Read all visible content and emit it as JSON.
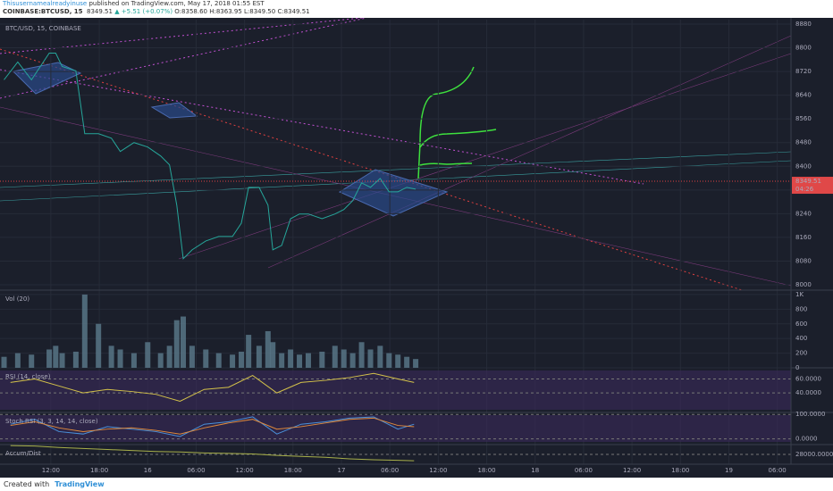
{
  "header": {
    "author": "Thisusernamealreadyinuse",
    "published": "published on TradingView.com, May 17, 2018 01:55 EST",
    "symbol": "COINBASE:BTCUSD, 15",
    "price": "8349.51",
    "change": "▲ +5.51 (+0.07%)",
    "ohlc": "O:8358.60 H:8363.95 L:8349.50 C:8349.51"
  },
  "footer": {
    "created": "Created with",
    "brand": "TradingView"
  },
  "chart_data": [
    {
      "type": "line",
      "title": "BTC/USD, 15, COINBASE",
      "color": "#26a69a",
      "x": [
        -5.8,
        -4.1,
        -2.4,
        -0.2,
        0.6,
        1.4,
        3.1,
        4.2,
        5.9,
        7.5,
        8.6,
        10.3,
        12.0,
        13.6,
        14.7,
        15.6,
        16.4,
        17.5,
        19.2,
        20.8,
        22.5,
        23.6,
        24.5,
        25.8,
        26.9,
        27.5,
        28.6,
        29.7,
        30.8,
        31.9,
        33.6,
        35.2,
        36.3,
        37.4,
        38.5,
        39.6,
        40.8,
        41.9,
        43.0,
        44.1,
        45.2
      ],
      "values": [
        8692,
        8752,
        8692,
        8782,
        8782,
        8737,
        8722,
        8510,
        8510,
        8495,
        8450,
        8480,
        8465,
        8435,
        8405,
        8269,
        8088,
        8118,
        8148,
        8163,
        8163,
        8208,
        8329,
        8329,
        8269,
        8118,
        8133,
        8223,
        8239,
        8239,
        8223,
        8239,
        8254,
        8284,
        8344,
        8329,
        8359,
        8314,
        8314,
        8329,
        8323
      ],
      "last_price": 8349.51,
      "countdown": "04:26",
      "ylim": [
        7982,
        8895
      ],
      "yticks": [
        8000,
        8080,
        8160,
        8240,
        8320,
        8400,
        8480,
        8560,
        8640,
        8720,
        8800,
        8880
      ],
      "xlim": [
        -6.3,
        91.7
      ],
      "xticks": [
        {
          "value": 0,
          "label": "12:00"
        },
        {
          "value": 6,
          "label": "18:00"
        },
        {
          "value": 12,
          "label": "16"
        },
        {
          "value": 18,
          "label": "06:00"
        },
        {
          "value": 24,
          "label": "12:00"
        },
        {
          "value": 30,
          "label": "18:00"
        },
        {
          "value": 36,
          "label": "17"
        },
        {
          "value": 42,
          "label": "06:00"
        },
        {
          "value": 48,
          "label": "12:00"
        },
        {
          "value": 54,
          "label": "18:00"
        },
        {
          "value": 60,
          "label": "18"
        },
        {
          "value": 66,
          "label": "06:00"
        },
        {
          "value": 72,
          "label": "12:00"
        },
        {
          "value": 78,
          "label": "18:00"
        },
        {
          "value": 84,
          "label": "19"
        },
        {
          "value": 90,
          "label": "06:00"
        }
      ],
      "grid": true
    },
    {
      "type": "bar",
      "title": "Vol (20)",
      "color": "#5b7a8c",
      "x": [
        -5.8,
        -4.1,
        -2.4,
        -0.2,
        0.6,
        1.4,
        3.1,
        4.2,
        5.9,
        7.5,
        8.6,
        10.3,
        12.0,
        13.6,
        14.7,
        15.6,
        16.4,
        17.5,
        19.2,
        20.8,
        22.5,
        23.6,
        24.5,
        25.8,
        26.9,
        27.5,
        28.6,
        29.7,
        30.8,
        31.9,
        33.6,
        35.2,
        36.3,
        37.4,
        38.5,
        39.6,
        40.8,
        41.9,
        43.0,
        44.1,
        45.2
      ],
      "values": [
        150,
        200,
        180,
        250,
        300,
        200,
        220,
        1000,
        600,
        300,
        250,
        200,
        350,
        200,
        300,
        650,
        700,
        300,
        250,
        200,
        180,
        220,
        450,
        300,
        500,
        350,
        200,
        250,
        180,
        200,
        220,
        300,
        250,
        200,
        350,
        250,
        300,
        200,
        180,
        150,
        120
      ],
      "ylim": [
        0,
        1060
      ],
      "yticks": [
        0,
        200,
        400,
        600,
        800,
        {
          "value": 1000,
          "label": "1K"
        }
      ]
    },
    {
      "type": "line",
      "title": "RSI (14, close)",
      "color": "#d4c24a",
      "x": [
        -5,
        -2,
        1,
        4,
        7,
        10,
        13,
        16,
        19,
        22,
        25,
        28,
        31,
        34,
        37,
        40,
        43,
        45
      ],
      "values": [
        55,
        60,
        50,
        40,
        45,
        42,
        38,
        28,
        45,
        48,
        65,
        40,
        55,
        58,
        62,
        68,
        60,
        55
      ],
      "ylim": [
        12,
        76
      ],
      "yticks": [
        {
          "value": 40,
          "label": "40.0000"
        },
        {
          "value": 60,
          "label": "60.0000"
        }
      ]
    },
    {
      "type": "line",
      "title": "Stoch RSI (3, 3, 14, 14, close)",
      "x": [
        -5,
        -2,
        1,
        4,
        7,
        10,
        13,
        16,
        19,
        22,
        25,
        28,
        31,
        34,
        37,
        40,
        43,
        45
      ],
      "series": [
        {
          "color": "#4a90d9",
          "values": [
            60,
            80,
            30,
            20,
            50,
            40,
            30,
            10,
            60,
            70,
            90,
            20,
            60,
            70,
            85,
            90,
            40,
            60
          ]
        },
        {
          "color": "#e08a3c",
          "values": [
            55,
            70,
            45,
            30,
            40,
            45,
            35,
            20,
            45,
            65,
            80,
            40,
            50,
            65,
            80,
            85,
            55,
            50
          ]
        }
      ],
      "ylim": [
        -23,
        108
      ],
      "yticks": [
        {
          "value": 0,
          "label": "0.0000"
        },
        {
          "value": 100,
          "label": "100.0000"
        }
      ]
    },
    {
      "type": "line",
      "title": "Accum/Dist",
      "color": "#a8b04a",
      "x": [
        -5,
        -2,
        1,
        4,
        7,
        10,
        13,
        16,
        19,
        22,
        25,
        28,
        31,
        34,
        37,
        40,
        43,
        45
      ],
      "values": [
        28900,
        28850,
        28700,
        28600,
        28500,
        28400,
        28300,
        28250,
        28150,
        28100,
        28050,
        27900,
        27800,
        27700,
        27550,
        27450,
        27400,
        27350
      ],
      "ylim": [
        27000,
        29000
      ],
      "yticks": [
        {
          "value": 28000,
          "label": "28000.0000"
        }
      ]
    }
  ]
}
